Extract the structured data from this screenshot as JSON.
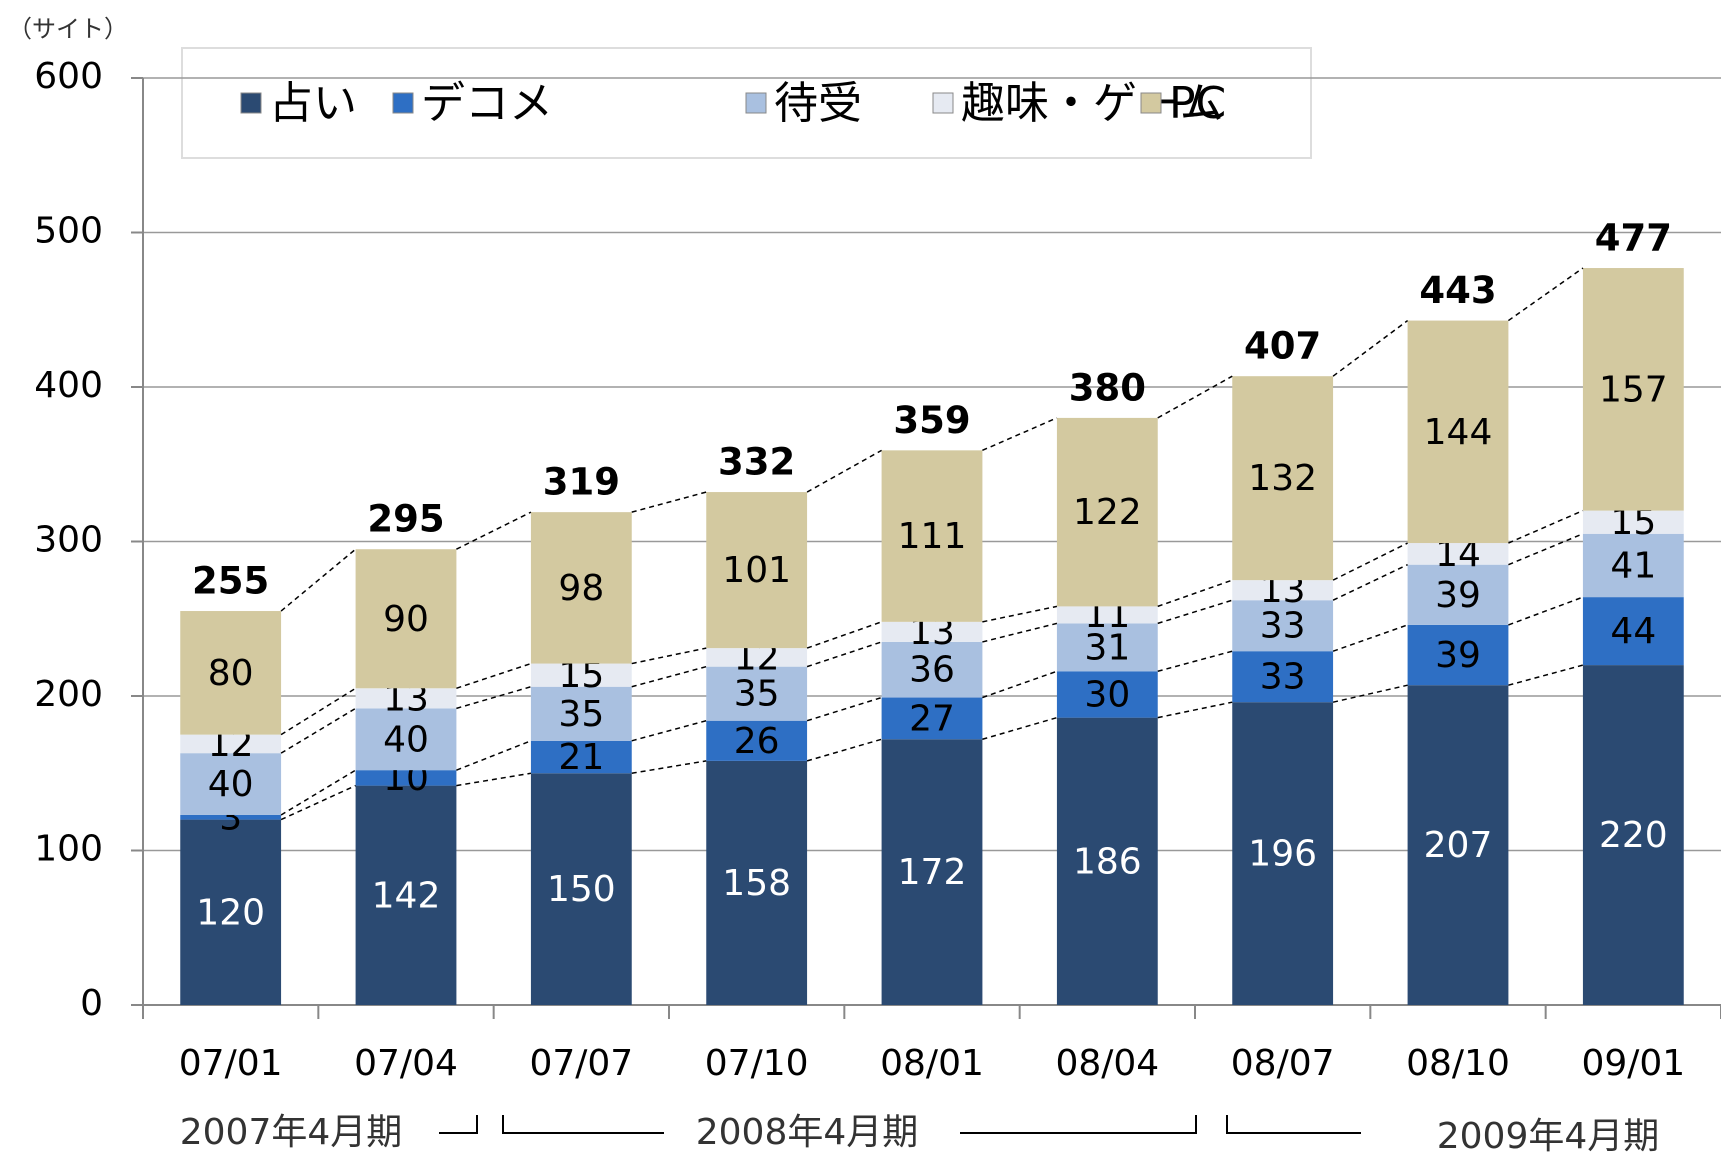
{
  "chart_data": {
    "type": "stacked-bar",
    "y_unit": "（サイト）",
    "categories": [
      "07/01",
      "07/04",
      "07/07",
      "07/10",
      "08/01",
      "08/04",
      "08/07",
      "08/10",
      "09/01"
    ],
    "series": [
      {
        "name": "占い",
        "color": "#2b4a72",
        "values": [
          120,
          142,
          150,
          158,
          172,
          186,
          196,
          207,
          220
        ]
      },
      {
        "name": "デコメ",
        "color": "#2e6fc4",
        "values": [
          3,
          10,
          21,
          26,
          27,
          30,
          33,
          39,
          44
        ]
      },
      {
        "name": "待受",
        "color": "#a9c0e0",
        "values": [
          40,
          40,
          35,
          35,
          36,
          31,
          33,
          39,
          41
        ]
      },
      {
        "name": "趣味・ゲーム",
        "color": "#e6eaf2",
        "values": [
          12,
          13,
          15,
          12,
          13,
          11,
          13,
          14,
          15
        ]
      },
      {
        "name": "PC",
        "color": "#d3c9a0",
        "values": [
          80,
          90,
          98,
          101,
          111,
          122,
          132,
          144,
          157
        ]
      }
    ],
    "totals": [
      255,
      295,
      319,
      332,
      359,
      380,
      407,
      443,
      477
    ],
    "periods": [
      "2007年4月期",
      "2008年4月期",
      "2009年4月期"
    ],
    "ylim": [
      0,
      600
    ],
    "yticks": [
      0,
      100,
      200,
      300,
      400,
      500,
      600
    ],
    "grid": true
  }
}
